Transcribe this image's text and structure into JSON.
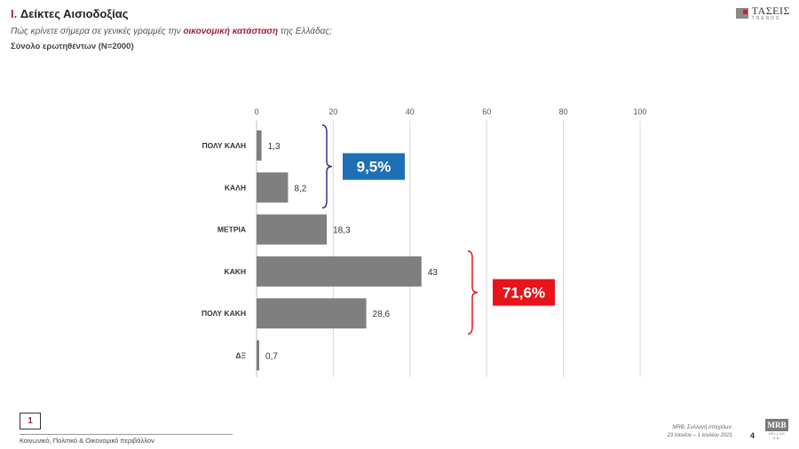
{
  "header": {
    "title_num": "I.",
    "title_text": "Δείκτες Αισιοδοξίας",
    "question_pre": "Πώς κρίνετε σήμερα σε γενικές γραμμές την ",
    "question_hl": "οικονομική κατάσταση",
    "question_post": " της Ελλάδας;",
    "base": "Σύνολο ερωτηθέντων (N=2000)"
  },
  "logo": {
    "name": "ΤΑΣΕΙΣ",
    "sub": "TRENDS"
  },
  "chart_data": {
    "type": "bar",
    "orientation": "horizontal",
    "categories": [
      "ΠΟΛΥ ΚΑΛΗ",
      "ΚΑΛΗ",
      "ΜΕΤΡΙΑ",
      "ΚΑΚΗ",
      "ΠΟΛΥ ΚΑΚΗ",
      "ΔΞ"
    ],
    "values": [
      1.3,
      8.2,
      18.3,
      43,
      28.6,
      0.7
    ],
    "value_labels": [
      "1,3",
      "8,2",
      "18,3",
      "43",
      "28,6",
      "0,7"
    ],
    "xlim": [
      0,
      100
    ],
    "xticks": [
      0,
      20,
      40,
      60,
      80,
      100
    ],
    "grid": true,
    "bar_color": "#7f7f7f",
    "annotations": [
      {
        "text": "9,5%",
        "groups": [
          0,
          1
        ],
        "color": "#1f6fb5",
        "bracket_color": "#3a2d8c"
      },
      {
        "text": "71,6%",
        "groups": [
          3,
          4
        ],
        "color": "#e8141c",
        "bracket_color": "#e8141c"
      }
    ]
  },
  "footer": {
    "page_box": "1",
    "section": "Κοινωνικό, Πολιτικό & Οικονομικό περιβάλλον",
    "source_line1": "MRB, Συλλογή στοιχείων:",
    "source_line2": "23 Ιουνίου – 1 Ιουλίου 2021",
    "page_number": "4",
    "brand": "MRB",
    "brand_sub": "HELLAS S.A."
  }
}
